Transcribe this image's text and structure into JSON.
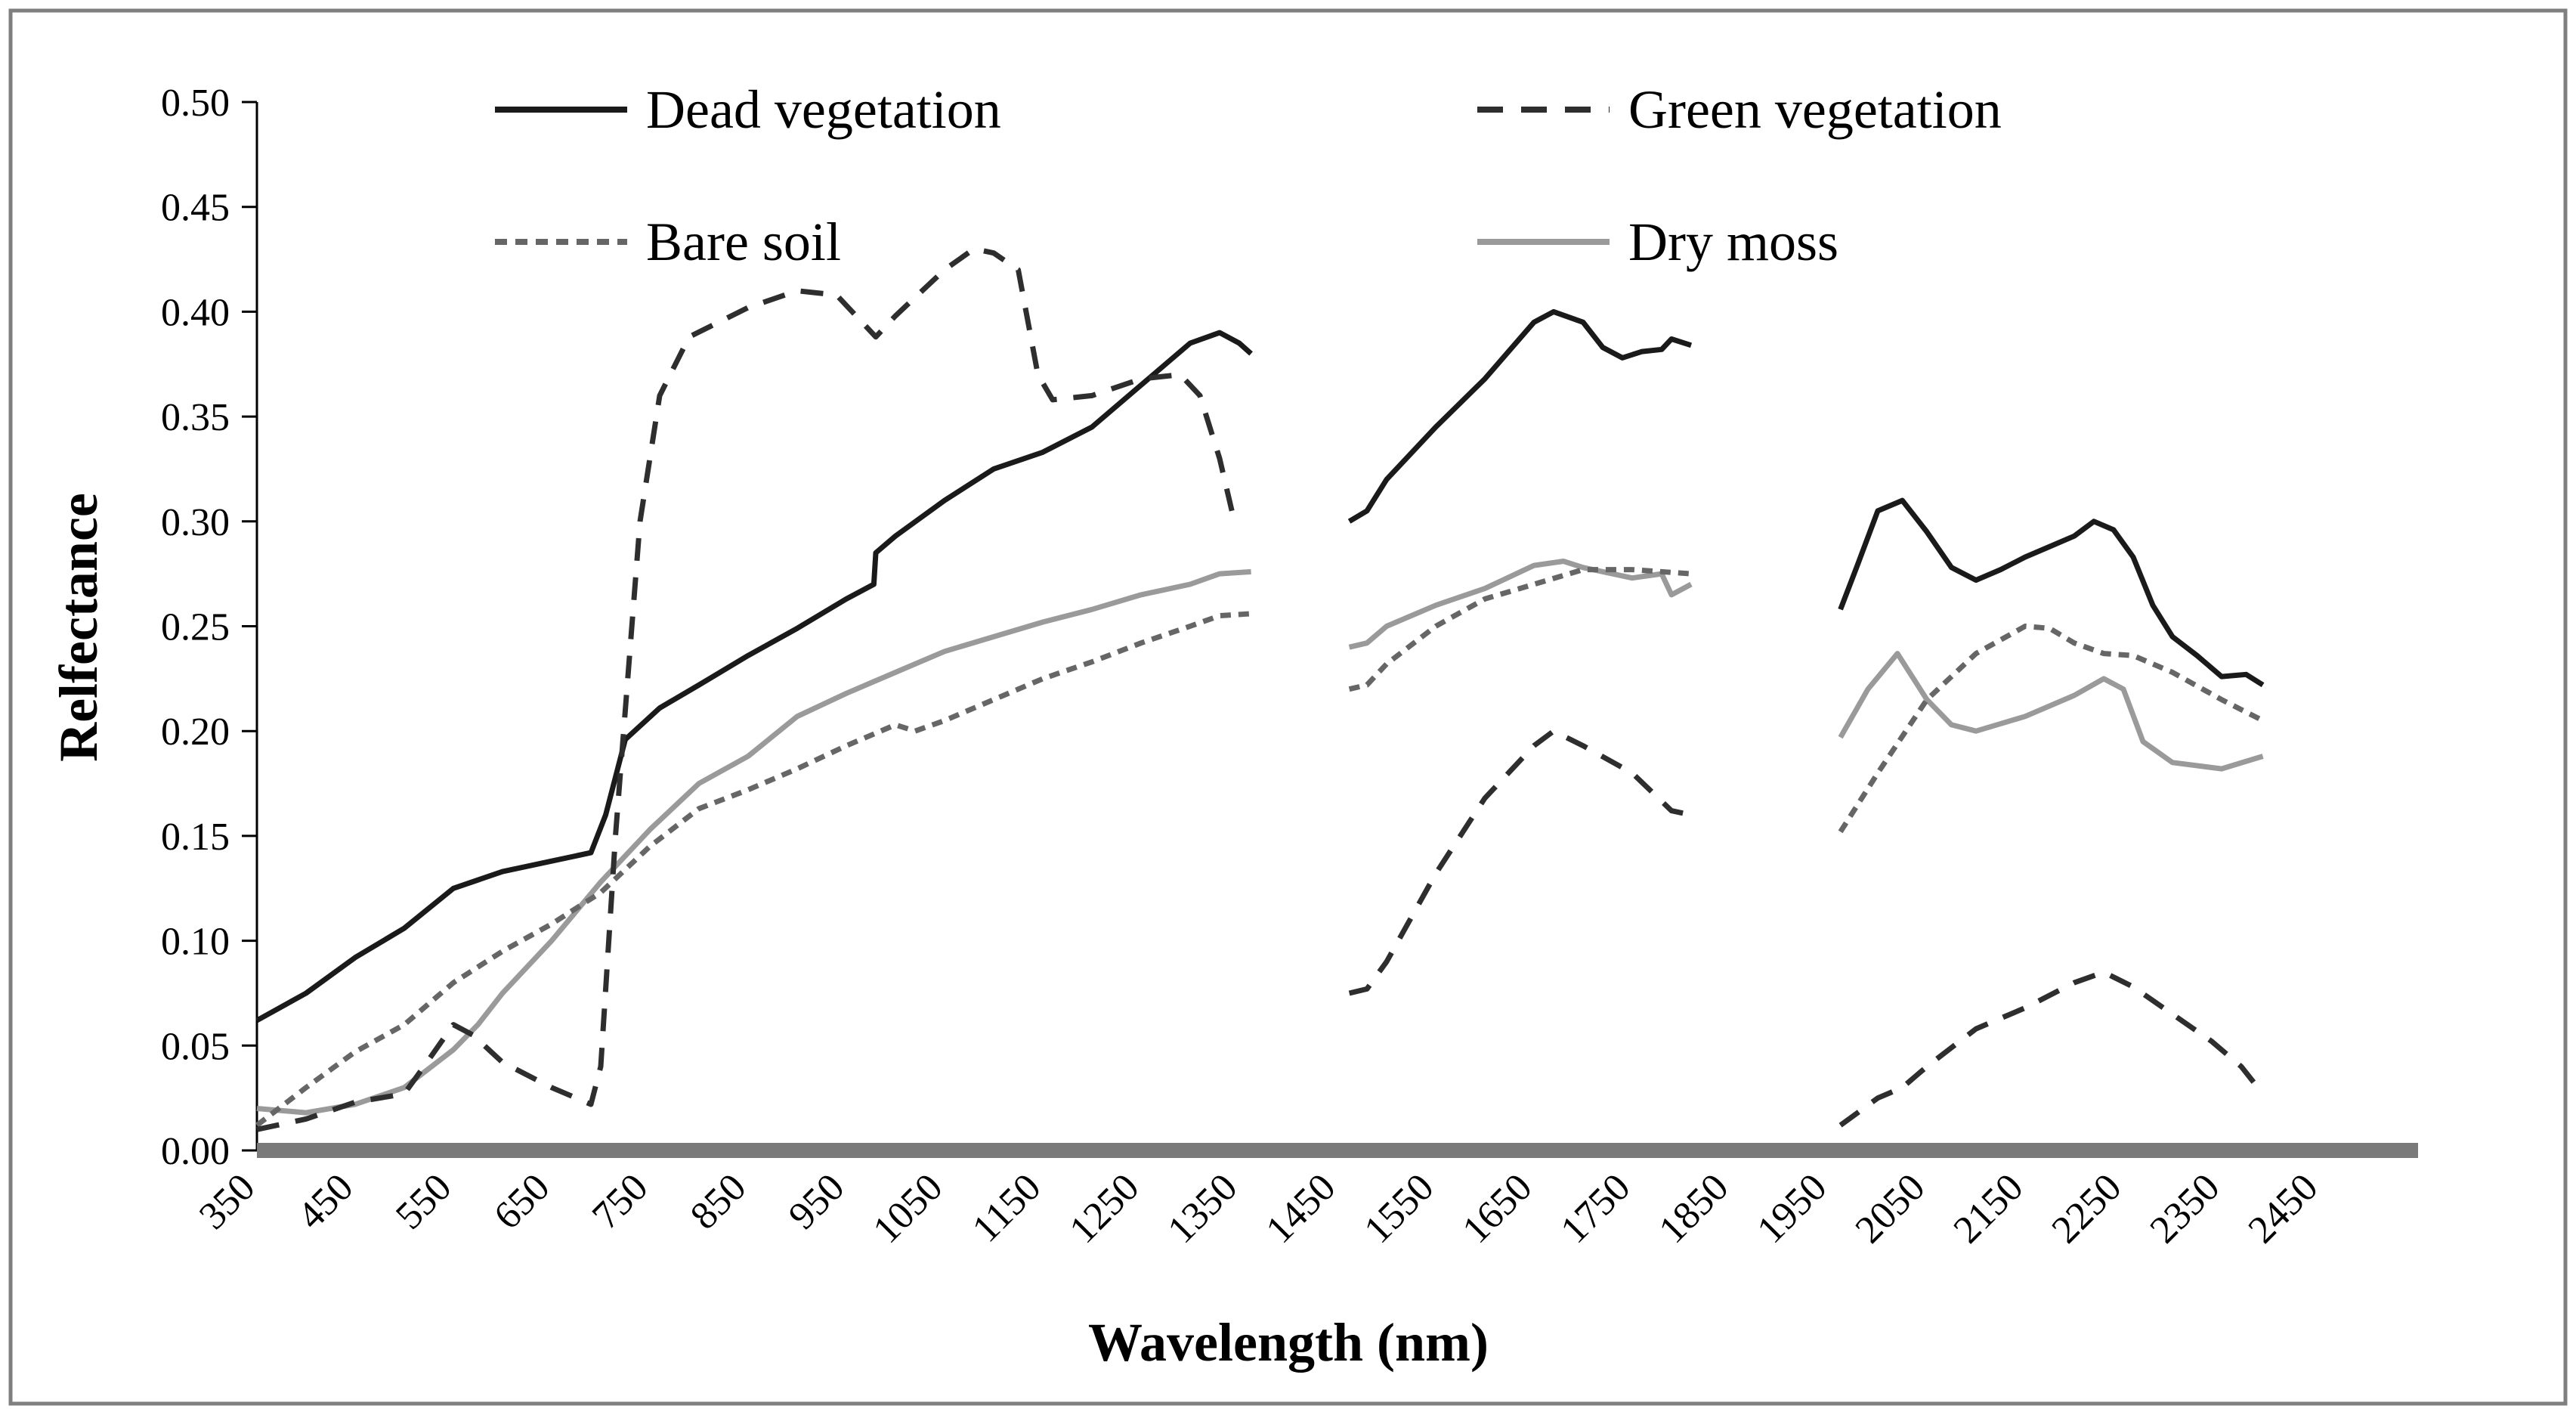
{
  "chart_data": {
    "type": "line",
    "title": "",
    "xlabel": "Wavelength (nm)",
    "ylabel": "Relfectance",
    "xlim": [
      350,
      2550
    ],
    "ylim": [
      0,
      0.5
    ],
    "x_ticks": [
      "350",
      "450",
      "550",
      "650",
      "750",
      "850",
      "950",
      "1050",
      "1150",
      "1250",
      "1350",
      "1450",
      "1550",
      "1650",
      "1750",
      "1850",
      "1950",
      "2050",
      "2150",
      "2250",
      "2350",
      "2450"
    ],
    "y_ticks": [
      "0.00",
      "0.05",
      "0.10",
      "0.15",
      "0.20",
      "0.25",
      "0.30",
      "0.35",
      "0.40",
      "0.45",
      "0.50"
    ],
    "grid": false,
    "legend_position": "top",
    "series": [
      {
        "name": "Dead vegetation",
        "color": "#1a1a1a",
        "style": "solid",
        "segments": [
          [
            [
              350,
              0.062
            ],
            [
              400,
              0.075
            ],
            [
              450,
              0.092
            ],
            [
              500,
              0.106
            ],
            [
              550,
              0.125
            ],
            [
              600,
              0.133
            ],
            [
              650,
              0.138
            ],
            [
              690,
              0.142
            ],
            [
              705,
              0.16
            ],
            [
              725,
              0.196
            ],
            [
              760,
              0.211
            ],
            [
              800,
              0.222
            ],
            [
              850,
              0.236
            ],
            [
              900,
              0.249
            ],
            [
              950,
              0.263
            ],
            [
              978,
              0.27
            ],
            [
              980,
              0.285
            ],
            [
              1000,
              0.293
            ],
            [
              1050,
              0.31
            ],
            [
              1100,
              0.325
            ],
            [
              1150,
              0.333
            ],
            [
              1200,
              0.345
            ],
            [
              1250,
              0.365
            ],
            [
              1300,
              0.385
            ],
            [
              1330,
              0.39
            ],
            [
              1350,
              0.385
            ],
            [
              1362,
              0.38
            ]
          ],
          [
            [
              1462,
              0.3
            ],
            [
              1480,
              0.305
            ],
            [
              1500,
              0.32
            ],
            [
              1550,
              0.345
            ],
            [
              1600,
              0.368
            ],
            [
              1650,
              0.395
            ],
            [
              1670,
              0.4
            ],
            [
              1700,
              0.395
            ],
            [
              1720,
              0.383
            ],
            [
              1740,
              0.378
            ],
            [
              1760,
              0.381
            ],
            [
              1780,
              0.382
            ],
            [
              1790,
              0.387
            ],
            [
              1810,
              0.384
            ]
          ],
          [
            [
              1962,
              0.258
            ],
            [
              1980,
              0.28
            ],
            [
              2000,
              0.305
            ],
            [
              2025,
              0.31
            ],
            [
              2050,
              0.295
            ],
            [
              2075,
              0.278
            ],
            [
              2100,
              0.272
            ],
            [
              2125,
              0.277
            ],
            [
              2150,
              0.283
            ],
            [
              2175,
              0.288
            ],
            [
              2200,
              0.293
            ],
            [
              2220,
              0.3
            ],
            [
              2240,
              0.296
            ],
            [
              2260,
              0.283
            ],
            [
              2280,
              0.26
            ],
            [
              2300,
              0.245
            ],
            [
              2325,
              0.236
            ],
            [
              2350,
              0.226
            ],
            [
              2375,
              0.227
            ],
            [
              2392,
              0.222
            ]
          ]
        ]
      },
      {
        "name": "Green vegetation",
        "color": "#2e2e2e",
        "style": "longdash",
        "segments": [
          [
            [
              350,
              0.01
            ],
            [
              400,
              0.015
            ],
            [
              450,
              0.023
            ],
            [
              500,
              0.027
            ],
            [
              520,
              0.04
            ],
            [
              550,
              0.06
            ],
            [
              570,
              0.055
            ],
            [
              600,
              0.042
            ],
            [
              650,
              0.03
            ],
            [
              690,
              0.022
            ],
            [
              700,
              0.04
            ],
            [
              715,
              0.15
            ],
            [
              740,
              0.3
            ],
            [
              760,
              0.36
            ],
            [
              790,
              0.388
            ],
            [
              850,
              0.402
            ],
            [
              900,
              0.41
            ],
            [
              940,
              0.408
            ],
            [
              980,
              0.388
            ],
            [
              1000,
              0.398
            ],
            [
              1050,
              0.42
            ],
            [
              1080,
              0.43
            ],
            [
              1100,
              0.428
            ],
            [
              1125,
              0.42
            ],
            [
              1145,
              0.37
            ],
            [
              1160,
              0.358
            ],
            [
              1200,
              0.36
            ],
            [
              1250,
              0.368
            ],
            [
              1290,
              0.37
            ],
            [
              1310,
              0.36
            ],
            [
              1330,
              0.33
            ],
            [
              1345,
              0.3
            ]
          ],
          [
            [
              1462,
              0.075
            ],
            [
              1480,
              0.077
            ],
            [
              1500,
              0.09
            ],
            [
              1550,
              0.132
            ],
            [
              1600,
              0.168
            ],
            [
              1650,
              0.193
            ],
            [
              1670,
              0.2
            ],
            [
              1700,
              0.193
            ],
            [
              1750,
              0.18
            ],
            [
              1790,
              0.162
            ],
            [
              1810,
              0.16
            ]
          ],
          [
            [
              1962,
              0.012
            ],
            [
              2000,
              0.025
            ],
            [
              2025,
              0.03
            ],
            [
              2050,
              0.04
            ],
            [
              2100,
              0.058
            ],
            [
              2150,
              0.068
            ],
            [
              2200,
              0.08
            ],
            [
              2230,
              0.085
            ],
            [
              2260,
              0.078
            ],
            [
              2300,
              0.065
            ],
            [
              2340,
              0.052
            ],
            [
              2370,
              0.04
            ],
            [
              2392,
              0.027
            ]
          ]
        ]
      },
      {
        "name": "Bare soil",
        "color": "#666666",
        "style": "shortdash",
        "segments": [
          [
            [
              350,
              0.012
            ],
            [
              400,
              0.03
            ],
            [
              450,
              0.047
            ],
            [
              500,
              0.06
            ],
            [
              550,
              0.08
            ],
            [
              600,
              0.095
            ],
            [
              650,
              0.108
            ],
            [
              700,
              0.123
            ],
            [
              750,
              0.145
            ],
            [
              800,
              0.163
            ],
            [
              850,
              0.172
            ],
            [
              900,
              0.182
            ],
            [
              950,
              0.193
            ],
            [
              1000,
              0.203
            ],
            [
              1020,
              0.2
            ],
            [
              1050,
              0.205
            ],
            [
              1100,
              0.215
            ],
            [
              1150,
              0.225
            ],
            [
              1200,
              0.233
            ],
            [
              1250,
              0.242
            ],
            [
              1300,
              0.25
            ],
            [
              1330,
              0.255
            ],
            [
              1362,
              0.256
            ]
          ],
          [
            [
              1462,
              0.22
            ],
            [
              1480,
              0.222
            ],
            [
              1500,
              0.232
            ],
            [
              1550,
              0.25
            ],
            [
              1600,
              0.263
            ],
            [
              1650,
              0.27
            ],
            [
              1700,
              0.277
            ],
            [
              1750,
              0.277
            ],
            [
              1810,
              0.275
            ]
          ],
          [
            [
              1962,
              0.152
            ],
            [
              2000,
              0.18
            ],
            [
              2050,
              0.215
            ],
            [
              2100,
              0.237
            ],
            [
              2150,
              0.25
            ],
            [
              2175,
              0.249
            ],
            [
              2200,
              0.242
            ],
            [
              2230,
              0.237
            ],
            [
              2260,
              0.236
            ],
            [
              2300,
              0.228
            ],
            [
              2350,
              0.215
            ],
            [
              2392,
              0.205
            ]
          ]
        ]
      },
      {
        "name": "Dry moss",
        "color": "#9a9a9a",
        "style": "solid",
        "segments": [
          [
            [
              350,
              0.02
            ],
            [
              400,
              0.018
            ],
            [
              450,
              0.022
            ],
            [
              500,
              0.03
            ],
            [
              550,
              0.048
            ],
            [
              575,
              0.06
            ],
            [
              600,
              0.075
            ],
            [
              650,
              0.1
            ],
            [
              700,
              0.128
            ],
            [
              750,
              0.153
            ],
            [
              800,
              0.175
            ],
            [
              850,
              0.188
            ],
            [
              900,
              0.207
            ],
            [
              950,
              0.218
            ],
            [
              1000,
              0.228
            ],
            [
              1050,
              0.238
            ],
            [
              1100,
              0.245
            ],
            [
              1150,
              0.252
            ],
            [
              1200,
              0.258
            ],
            [
              1250,
              0.265
            ],
            [
              1300,
              0.27
            ],
            [
              1330,
              0.275
            ],
            [
              1362,
              0.276
            ]
          ],
          [
            [
              1462,
              0.24
            ],
            [
              1480,
              0.242
            ],
            [
              1500,
              0.25
            ],
            [
              1550,
              0.26
            ],
            [
              1600,
              0.268
            ],
            [
              1650,
              0.279
            ],
            [
              1680,
              0.281
            ],
            [
              1700,
              0.278
            ],
            [
              1750,
              0.273
            ],
            [
              1780,
              0.275
            ],
            [
              1790,
              0.265
            ],
            [
              1810,
              0.27
            ]
          ],
          [
            [
              1962,
              0.197
            ],
            [
              1990,
              0.22
            ],
            [
              2020,
              0.237
            ],
            [
              2050,
              0.215
            ],
            [
              2075,
              0.203
            ],
            [
              2100,
              0.2
            ],
            [
              2150,
              0.207
            ],
            [
              2200,
              0.217
            ],
            [
              2230,
              0.225
            ],
            [
              2250,
              0.22
            ],
            [
              2270,
              0.195
            ],
            [
              2300,
              0.185
            ],
            [
              2350,
              0.182
            ],
            [
              2392,
              0.188
            ]
          ]
        ]
      }
    ]
  }
}
